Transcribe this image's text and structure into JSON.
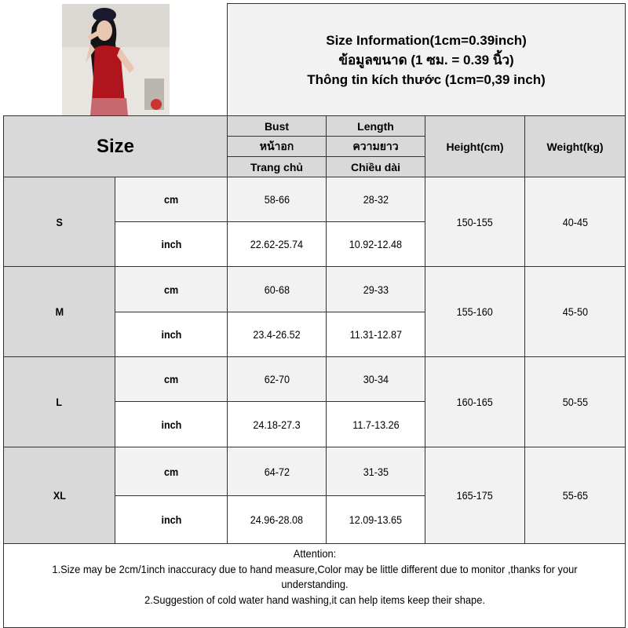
{
  "header": {
    "title_en": "Size Information(1cm=0.39inch)",
    "title_th": "ข้อมูลขนาด (1 ซม. = 0.39 นิ้ว)",
    "title_vi": "Thông tin kích thước (1cm=0,39 inch)"
  },
  "columns": {
    "size": "Size",
    "bust": [
      "Bust",
      "หน้าอก",
      "Trang chủ"
    ],
    "length": [
      "Length",
      "ความยาว",
      "Chiều dài"
    ],
    "height": "Height(cm)",
    "weight": "Weight(kg)"
  },
  "rows": [
    {
      "size": "S",
      "cm_label": "cm",
      "inch_label": "inch",
      "bust_cm": "58-66",
      "length_cm": "28-32",
      "bust_inch": "22.62-25.74",
      "length_inch": "10.92-12.48",
      "height": "150-155",
      "weight": "40-45"
    },
    {
      "size": "M",
      "cm_label": "cm",
      "inch_label": "inch",
      "bust_cm": "60-68",
      "length_cm": "29-33",
      "bust_inch": "23.4-26.52",
      "length_inch": "11.31-12.87",
      "height": "155-160",
      "weight": "45-50"
    },
    {
      "size": "L",
      "cm_label": "cm",
      "inch_label": "inch",
      "bust_cm": "62-70",
      "length_cm": "30-34",
      "bust_inch": "24.18-27.3",
      "length_inch": "11.7-13.26",
      "height": "160-165",
      "weight": "50-55"
    },
    {
      "size": "XL",
      "cm_label": "cm",
      "inch_label": "inch",
      "bust_cm": "64-72",
      "length_cm": "31-35",
      "bust_inch": "24.96-28.08",
      "length_inch": "12.09-13.65",
      "height": "165-175",
      "weight": "55-65"
    }
  ],
  "attention": {
    "heading": "Attention:",
    "line1": "1.Size may be 2cm/1inch inaccuracy due to hand measure,Color may be little different due to monitor ,thanks for your understanding.",
    "line2": "2.Suggestion of cold water hand washing,it can help items keep their shape."
  },
  "colors": {
    "header_bg": "#f2f2f2",
    "label_bg": "#d9d9d9",
    "border": "#333333"
  }
}
